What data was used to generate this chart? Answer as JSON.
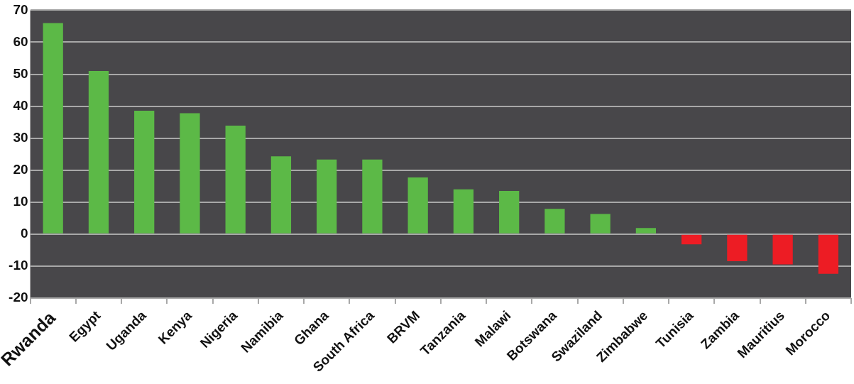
{
  "chart_data": {
    "type": "bar",
    "categories": [
      "Rwanda",
      "Egypt",
      "Uganda",
      "Kenya",
      "Nigeria",
      "Namibia",
      "Ghana",
      "South Africa",
      "BRVM",
      "Tanzania",
      "Malawi",
      "Botswana",
      "Swaziland",
      "Zimbabwe",
      "Tunisia",
      "Zambia",
      "Mauritius",
      "Morocco"
    ],
    "values": [
      66,
      51,
      38.6,
      37.8,
      33.9,
      24.3,
      23.3,
      23.3,
      17.7,
      14,
      13.5,
      7.9,
      6.3,
      1.9,
      -3.2,
      -8.5,
      -9.5,
      -12.4
    ],
    "colors": [
      "#5cb947",
      "#5cb947",
      "#5cb947",
      "#5cb947",
      "#5cb947",
      "#5cb947",
      "#5cb947",
      "#5cb947",
      "#5cb947",
      "#5cb947",
      "#5cb947",
      "#5cb947",
      "#5cb947",
      "#5cb947",
      "#ed1c24",
      "#ed1c24",
      "#ed1c24",
      "#ed1c24"
    ],
    "ylim": [
      -20,
      70
    ],
    "yticks": [
      -20,
      -10,
      0,
      10,
      20,
      30,
      40,
      50,
      60,
      70
    ],
    "grid": "y"
  }
}
